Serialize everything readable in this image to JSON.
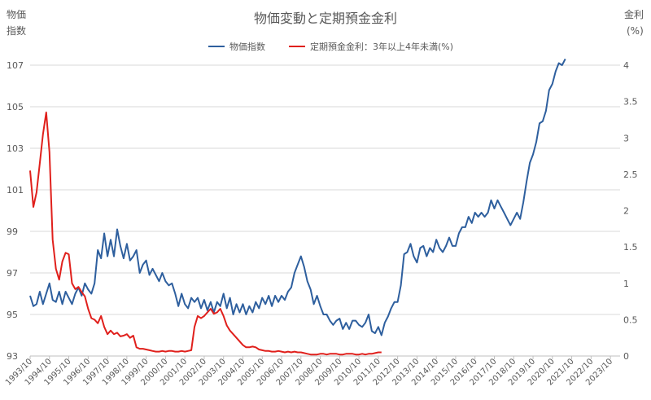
{
  "chart_data": {
    "type": "line",
    "title": "物価変動と定期預金金利",
    "y1label": [
      "物価",
      "指数"
    ],
    "y2label": [
      "金利",
      "(%)"
    ],
    "y1lim": [
      93,
      107
    ],
    "y1ticks": [
      93,
      95,
      97,
      99,
      101,
      103,
      105,
      107
    ],
    "y2lim": [
      0,
      4
    ],
    "y2ticks": [
      "0",
      "0.5",
      "1",
      "1.5",
      "2",
      "2.5",
      "3",
      "3.5",
      "4"
    ],
    "x_start": "1993/10",
    "x_end": "2024/04",
    "x_tick_labels": [
      "1993/10",
      "1994/10",
      "1995/10",
      "1996/10",
      "1997/10",
      "1998/10",
      "1999/10",
      "2000/10",
      "2001/10",
      "2002/10",
      "2003/10",
      "2004/10",
      "2005/10",
      "2006/10",
      "2007/10",
      "2008/10",
      "2009/10",
      "2010/10",
      "2011/10",
      "2012/10",
      "2013/10",
      "2014/10",
      "2015/10",
      "2016/10",
      "2017/10",
      "2018/10",
      "2019/10",
      "2020/10",
      "2021/10",
      "2022/10",
      "2023/10"
    ],
    "legend_position": "top",
    "grid": "horizontal",
    "series": [
      {
        "name": "物価指数",
        "axis": "left",
        "color": "#2e5f9e",
        "points": [
          [
            "1993/10",
            95.9
          ],
          [
            "1993/12",
            95.4
          ],
          [
            "1994/02",
            95.5
          ],
          [
            "1994/04",
            96.1
          ],
          [
            "1994/06",
            95.5
          ],
          [
            "1994/08",
            96.0
          ],
          [
            "1994/10",
            96.5
          ],
          [
            "1994/12",
            95.7
          ],
          [
            "1995/02",
            95.6
          ],
          [
            "1995/04",
            96.1
          ],
          [
            "1995/06",
            95.5
          ],
          [
            "1995/08",
            96.1
          ],
          [
            "1995/10",
            95.8
          ],
          [
            "1995/12",
            95.5
          ],
          [
            "1996/02",
            96.0
          ],
          [
            "1996/04",
            96.3
          ],
          [
            "1996/06",
            95.9
          ],
          [
            "1996/08",
            96.5
          ],
          [
            "1996/10",
            96.2
          ],
          [
            "1996/12",
            96.0
          ],
          [
            "1997/02",
            96.5
          ],
          [
            "1997/04",
            98.1
          ],
          [
            "1997/06",
            97.7
          ],
          [
            "1997/08",
            98.9
          ],
          [
            "1997/10",
            97.8
          ],
          [
            "1997/12",
            98.6
          ],
          [
            "1998/02",
            97.8
          ],
          [
            "1998/04",
            99.1
          ],
          [
            "1998/06",
            98.3
          ],
          [
            "1998/08",
            97.7
          ],
          [
            "1998/10",
            98.4
          ],
          [
            "1998/12",
            97.6
          ],
          [
            "1999/02",
            97.8
          ],
          [
            "1999/04",
            98.1
          ],
          [
            "1999/06",
            97.0
          ],
          [
            "1999/08",
            97.4
          ],
          [
            "1999/10",
            97.6
          ],
          [
            "1999/12",
            96.9
          ],
          [
            "2000/02",
            97.2
          ],
          [
            "2000/04",
            96.9
          ],
          [
            "2000/06",
            96.6
          ],
          [
            "2000/08",
            97.0
          ],
          [
            "2000/10",
            96.6
          ],
          [
            "2000/12",
            96.4
          ],
          [
            "2001/02",
            96.5
          ],
          [
            "2001/04",
            96.0
          ],
          [
            "2001/06",
            95.4
          ],
          [
            "2001/08",
            96.0
          ],
          [
            "2001/10",
            95.5
          ],
          [
            "2001/12",
            95.3
          ],
          [
            "2002/02",
            95.8
          ],
          [
            "2002/04",
            95.6
          ],
          [
            "2002/06",
            95.8
          ],
          [
            "2002/08",
            95.3
          ],
          [
            "2002/10",
            95.7
          ],
          [
            "2002/12",
            95.2
          ],
          [
            "2003/02",
            95.6
          ],
          [
            "2003/04",
            95.1
          ],
          [
            "2003/06",
            95.6
          ],
          [
            "2003/08",
            95.4
          ],
          [
            "2003/10",
            96.0
          ],
          [
            "2003/12",
            95.3
          ],
          [
            "2004/02",
            95.8
          ],
          [
            "2004/04",
            95.0
          ],
          [
            "2004/06",
            95.5
          ],
          [
            "2004/08",
            95.1
          ],
          [
            "2004/10",
            95.5
          ],
          [
            "2004/12",
            95.0
          ],
          [
            "2005/02",
            95.4
          ],
          [
            "2005/04",
            95.1
          ],
          [
            "2005/06",
            95.6
          ],
          [
            "2005/08",
            95.3
          ],
          [
            "2005/10",
            95.8
          ],
          [
            "2005/12",
            95.5
          ],
          [
            "2006/02",
            95.9
          ],
          [
            "2006/04",
            95.4
          ],
          [
            "2006/06",
            95.9
          ],
          [
            "2006/08",
            95.6
          ],
          [
            "2006/10",
            95.9
          ],
          [
            "2006/12",
            95.7
          ],
          [
            "2007/02",
            96.1
          ],
          [
            "2007/04",
            96.3
          ],
          [
            "2007/06",
            97.0
          ],
          [
            "2007/08",
            97.4
          ],
          [
            "2007/10",
            97.8
          ],
          [
            "2007/12",
            97.3
          ],
          [
            "2008/02",
            96.6
          ],
          [
            "2008/04",
            96.2
          ],
          [
            "2008/06",
            95.5
          ],
          [
            "2008/08",
            95.9
          ],
          [
            "2008/10",
            95.4
          ],
          [
            "2008/12",
            95.0
          ],
          [
            "2009/02",
            95.0
          ],
          [
            "2009/04",
            94.7
          ],
          [
            "2009/06",
            94.5
          ],
          [
            "2009/08",
            94.7
          ],
          [
            "2009/10",
            94.8
          ],
          [
            "2009/12",
            94.3
          ],
          [
            "2010/02",
            94.6
          ],
          [
            "2010/04",
            94.3
          ],
          [
            "2010/06",
            94.7
          ],
          [
            "2010/08",
            94.7
          ],
          [
            "2010/10",
            94.5
          ],
          [
            "2010/12",
            94.4
          ],
          [
            "2011/02",
            94.6
          ],
          [
            "2011/04",
            95.0
          ],
          [
            "2011/06",
            94.2
          ],
          [
            "2011/08",
            94.1
          ],
          [
            "2011/10",
            94.4
          ],
          [
            "2011/12",
            94.0
          ],
          [
            "2012/02",
            94.6
          ],
          [
            "2012/04",
            94.9
          ],
          [
            "2012/06",
            95.3
          ],
          [
            "2012/08",
            95.6
          ],
          [
            "2012/10",
            95.6
          ],
          [
            "2012/12",
            96.4
          ],
          [
            "2013/02",
            97.9
          ],
          [
            "2013/04",
            98.0
          ],
          [
            "2013/06",
            98.4
          ],
          [
            "2013/08",
            97.8
          ],
          [
            "2013/10",
            97.5
          ],
          [
            "2013/12",
            98.2
          ],
          [
            "2014/02",
            98.3
          ],
          [
            "2014/04",
            97.8
          ],
          [
            "2014/06",
            98.2
          ],
          [
            "2014/08",
            98.0
          ],
          [
            "2014/10",
            98.6
          ],
          [
            "2014/12",
            98.2
          ],
          [
            "2015/02",
            98.0
          ],
          [
            "2015/04",
            98.3
          ],
          [
            "2015/06",
            98.7
          ],
          [
            "2015/08",
            98.3
          ],
          [
            "2015/10",
            98.3
          ],
          [
            "2015/12",
            98.9
          ],
          [
            "2016/02",
            99.2
          ],
          [
            "2016/04",
            99.2
          ],
          [
            "2016/06",
            99.7
          ],
          [
            "2016/08",
            99.4
          ],
          [
            "2016/10",
            99.9
          ],
          [
            "2016/12",
            99.7
          ],
          [
            "2017/02",
            99.9
          ],
          [
            "2017/04",
            99.7
          ],
          [
            "2017/06",
            99.9
          ],
          [
            "2017/08",
            100.5
          ],
          [
            "2017/10",
            100.1
          ],
          [
            "2017/12",
            100.5
          ],
          [
            "2018/02",
            100.2
          ],
          [
            "2018/04",
            99.9
          ],
          [
            "2018/06",
            99.6
          ],
          [
            "2018/08",
            99.3
          ],
          [
            "2018/10",
            99.6
          ],
          [
            "2018/12",
            99.9
          ],
          [
            "2019/02",
            99.6
          ],
          [
            "2019/04",
            100.4
          ],
          [
            "2019/06",
            101.4
          ],
          [
            "2019/08",
            102.3
          ],
          [
            "2019/10",
            102.7
          ],
          [
            "2019/12",
            103.3
          ],
          [
            "2020/02",
            104.2
          ],
          [
            "2020/04",
            104.3
          ],
          [
            "2020/06",
            104.8
          ],
          [
            "2020/08",
            105.8
          ],
          [
            "2020/10",
            106.1
          ],
          [
            "2020/12",
            106.7
          ],
          [
            "2021/02",
            107.1
          ],
          [
            "2021/04",
            107.0
          ],
          [
            "2021/06",
            107.3
          ]
        ]
      },
      {
        "name": "定期預金金利：3年以上4年未満(%)",
        "axis": "right",
        "color": "#e0201c",
        "points": [
          [
            "1993/10",
            2.55
          ],
          [
            "1993/12",
            2.05
          ],
          [
            "1994/02",
            2.25
          ],
          [
            "1994/04",
            2.65
          ],
          [
            "1994/06",
            3.05
          ],
          [
            "1994/08",
            3.35
          ],
          [
            "1994/10",
            2.8
          ],
          [
            "1994/12",
            1.6
          ],
          [
            "1995/02",
            1.2
          ],
          [
            "1995/04",
            1.05
          ],
          [
            "1995/06",
            1.3
          ],
          [
            "1995/08",
            1.42
          ],
          [
            "1995/10",
            1.4
          ],
          [
            "1995/12",
            1.0
          ],
          [
            "1996/02",
            0.92
          ],
          [
            "1996/04",
            0.95
          ],
          [
            "1996/06",
            0.88
          ],
          [
            "1996/08",
            0.82
          ],
          [
            "1996/10",
            0.65
          ],
          [
            "1996/12",
            0.52
          ],
          [
            "1997/02",
            0.5
          ],
          [
            "1997/04",
            0.45
          ],
          [
            "1997/06",
            0.55
          ],
          [
            "1997/08",
            0.4
          ],
          [
            "1997/10",
            0.3
          ],
          [
            "1997/12",
            0.35
          ],
          [
            "1998/02",
            0.3
          ],
          [
            "1998/04",
            0.32
          ],
          [
            "1998/06",
            0.27
          ],
          [
            "1998/08",
            0.28
          ],
          [
            "1998/10",
            0.3
          ],
          [
            "1998/12",
            0.25
          ],
          [
            "1999/02",
            0.28
          ],
          [
            "1999/04",
            0.12
          ],
          [
            "1999/06",
            0.1
          ],
          [
            "1999/08",
            0.1
          ],
          [
            "1999/10",
            0.09
          ],
          [
            "1999/12",
            0.08
          ],
          [
            "2000/02",
            0.07
          ],
          [
            "2000/04",
            0.06
          ],
          [
            "2000/06",
            0.06
          ],
          [
            "2000/08",
            0.07
          ],
          [
            "2000/10",
            0.06
          ],
          [
            "2000/12",
            0.07
          ],
          [
            "2001/02",
            0.07
          ],
          [
            "2001/04",
            0.06
          ],
          [
            "2001/06",
            0.06
          ],
          [
            "2001/08",
            0.07
          ],
          [
            "2001/10",
            0.06
          ],
          [
            "2001/12",
            0.07
          ],
          [
            "2002/02",
            0.08
          ],
          [
            "2002/04",
            0.4
          ],
          [
            "2002/06",
            0.55
          ],
          [
            "2002/08",
            0.52
          ],
          [
            "2002/10",
            0.55
          ],
          [
            "2002/12",
            0.6
          ],
          [
            "2003/02",
            0.65
          ],
          [
            "2003/04",
            0.58
          ],
          [
            "2003/06",
            0.6
          ],
          [
            "2003/08",
            0.65
          ],
          [
            "2003/10",
            0.55
          ],
          [
            "2003/12",
            0.42
          ],
          [
            "2004/02",
            0.35
          ],
          [
            "2004/04",
            0.3
          ],
          [
            "2004/06",
            0.25
          ],
          [
            "2004/08",
            0.2
          ],
          [
            "2004/10",
            0.15
          ],
          [
            "2004/12",
            0.12
          ],
          [
            "2005/02",
            0.12
          ],
          [
            "2005/04",
            0.13
          ],
          [
            "2005/06",
            0.12
          ],
          [
            "2005/08",
            0.09
          ],
          [
            "2005/10",
            0.08
          ],
          [
            "2005/12",
            0.07
          ],
          [
            "2006/02",
            0.07
          ],
          [
            "2006/04",
            0.06
          ],
          [
            "2006/06",
            0.06
          ],
          [
            "2006/08",
            0.07
          ],
          [
            "2006/10",
            0.06
          ],
          [
            "2006/12",
            0.05
          ],
          [
            "2007/02",
            0.06
          ],
          [
            "2007/04",
            0.05
          ],
          [
            "2007/06",
            0.06
          ],
          [
            "2007/08",
            0.05
          ],
          [
            "2007/10",
            0.05
          ],
          [
            "2007/12",
            0.04
          ],
          [
            "2008/02",
            0.03
          ],
          [
            "2008/04",
            0.02
          ],
          [
            "2008/06",
            0.02
          ],
          [
            "2008/08",
            0.02
          ],
          [
            "2008/10",
            0.03
          ],
          [
            "2008/12",
            0.03
          ],
          [
            "2009/02",
            0.02
          ],
          [
            "2009/04",
            0.03
          ],
          [
            "2009/06",
            0.03
          ],
          [
            "2009/08",
            0.03
          ],
          [
            "2009/10",
            0.02
          ],
          [
            "2009/12",
            0.02
          ],
          [
            "2010/02",
            0.03
          ],
          [
            "2010/04",
            0.03
          ],
          [
            "2010/06",
            0.03
          ],
          [
            "2010/08",
            0.02
          ],
          [
            "2010/10",
            0.02
          ],
          [
            "2010/12",
            0.03
          ],
          [
            "2011/02",
            0.02
          ],
          [
            "2011/04",
            0.03
          ],
          [
            "2011/06",
            0.03
          ],
          [
            "2011/08",
            0.04
          ],
          [
            "2011/10",
            0.05
          ],
          [
            "2011/12",
            0.05
          ]
        ]
      }
    ]
  }
}
